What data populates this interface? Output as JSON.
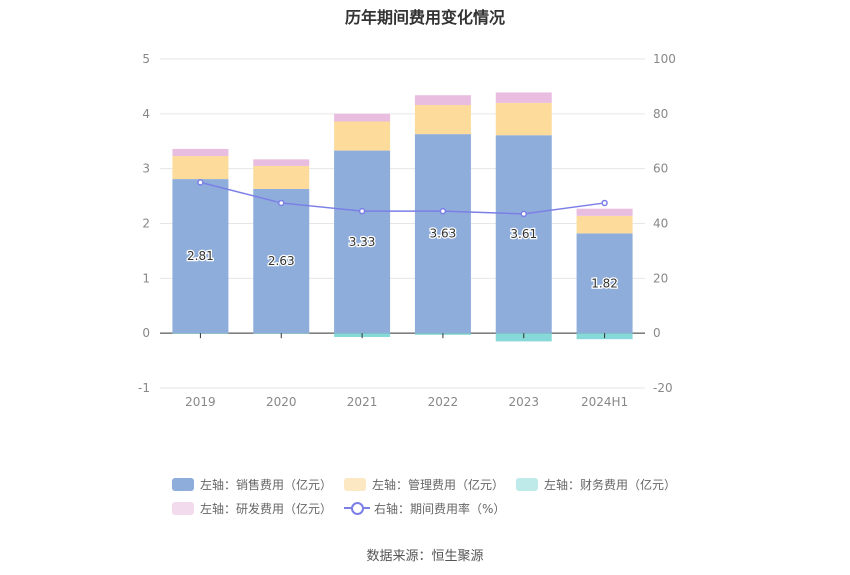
{
  "chart_data": {
    "type": "bar",
    "title": "历年期间费用变化情况",
    "categories": [
      "2019",
      "2020",
      "2021",
      "2022",
      "2023",
      "2024H1"
    ],
    "left_axis": {
      "ylim": [
        -1,
        5
      ],
      "ticks": [
        "-1",
        "0",
        "1",
        "2",
        "3",
        "4",
        "5"
      ]
    },
    "right_axis": {
      "ylim": [
        -20,
        100
      ],
      "ticks": [
        "-20",
        "0",
        "20",
        "40",
        "60",
        "80",
        "100"
      ]
    },
    "series": [
      {
        "name": "左轴：销售费用（亿元）",
        "axis": "left",
        "stack": true,
        "color": "#8eaddb",
        "values": [
          2.81,
          2.63,
          3.33,
          3.63,
          3.61,
          1.82
        ],
        "labels": [
          "2.81",
          "2.63",
          "3.33",
          "3.63",
          "3.61",
          "1.82"
        ]
      },
      {
        "name": "左轴：管理费用（亿元）",
        "axis": "left",
        "stack": true,
        "color": "#fddb9b",
        "values": [
          0.42,
          0.42,
          0.53,
          0.53,
          0.59,
          0.32
        ]
      },
      {
        "name": "左轴：财务费用（亿元）",
        "axis": "left",
        "stack": true,
        "color": "#87d8d8",
        "values": [
          -0.01,
          -0.01,
          -0.07,
          -0.03,
          -0.15,
          -0.11
        ]
      },
      {
        "name": "左轴：研发费用（亿元）",
        "axis": "left",
        "stack": true,
        "color": "#e9bde0",
        "values": [
          0.13,
          0.12,
          0.14,
          0.18,
          0.19,
          0.13
        ]
      },
      {
        "name": "右轴：期间费用率（%）",
        "axis": "right",
        "type": "line",
        "color": "#7b7fe6",
        "values": [
          55.0,
          47.5,
          44.5,
          44.5,
          43.5,
          47.5
        ]
      }
    ],
    "grid": true,
    "legend_position": "bottom"
  },
  "legend": {
    "sales": "左轴：销售费用（亿元）",
    "admin": "左轴：管理费用（亿元）",
    "finance": "左轴：财务费用（亿元）",
    "rnd": "左轴：研发费用（亿元）",
    "rate": "右轴：期间费用率（%）"
  },
  "source": "数据来源：恒生聚源",
  "colors": {
    "sales": "#8eaddb",
    "admin": "#fddb9b",
    "finance": "#87d8d8",
    "rnd": "#e9bde0",
    "rate": "#7b7fe6"
  }
}
